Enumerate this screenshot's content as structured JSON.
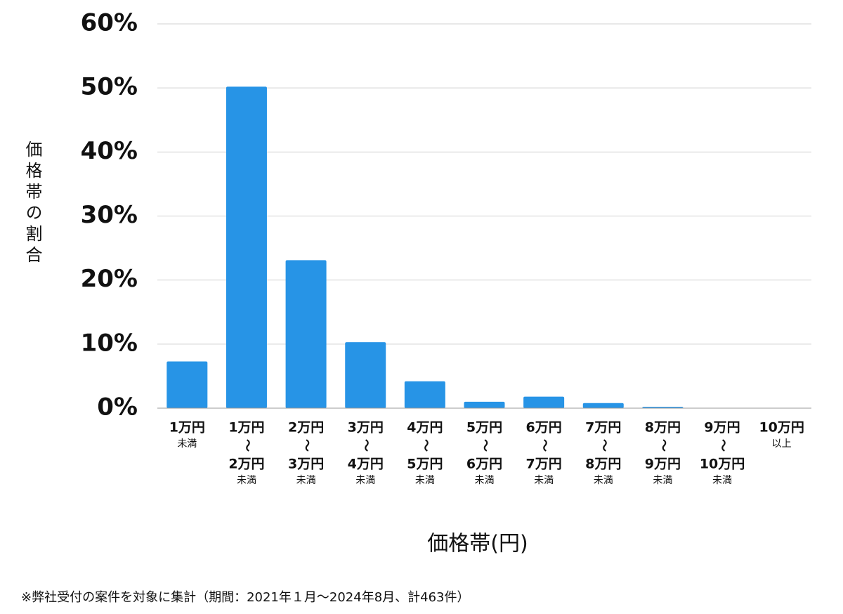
{
  "chart_data": {
    "type": "bar",
    "ylabel": "価格帯の割合",
    "xlabel": "価格帯(円)",
    "footnote": "※弊社受付の案件を対象に集計（期間：2021年１月〜2024年8月、計463件）",
    "categories": [
      [
        "1万円",
        "未満"
      ],
      [
        "1万円",
        "〜",
        "2万円",
        "未満"
      ],
      [
        "2万円",
        "〜",
        "3万円",
        "未満"
      ],
      [
        "3万円",
        "〜",
        "4万円",
        "未満"
      ],
      [
        "4万円",
        "〜",
        "5万円",
        "未満"
      ],
      [
        "5万円",
        "〜",
        "6万円",
        "未満"
      ],
      [
        "6万円",
        "〜",
        "7万円",
        "未満"
      ],
      [
        "7万円",
        "〜",
        "8万円",
        "未満"
      ],
      [
        "8万円",
        "〜",
        "9万円",
        "未満"
      ],
      [
        "9万円",
        "〜",
        "10万円",
        "未満"
      ],
      [
        "10万円",
        "以上"
      ]
    ],
    "values": [
      7.3,
      50.2,
      23.1,
      10.3,
      4.2,
      1.0,
      1.8,
      0.8,
      0.2,
      0,
      0
    ],
    "color": "#2794e6",
    "ylim": [
      0,
      60
    ],
    "yticks": [
      {
        "value": 0,
        "label": "0%"
      },
      {
        "value": 10,
        "label": "10%"
      },
      {
        "value": 20,
        "label": "20%"
      },
      {
        "value": 30,
        "label": "30%"
      },
      {
        "value": 40,
        "label": "40%"
      },
      {
        "value": 50,
        "label": "50%"
      },
      {
        "value": 60,
        "label": "60%"
      }
    ],
    "grid": true
  }
}
